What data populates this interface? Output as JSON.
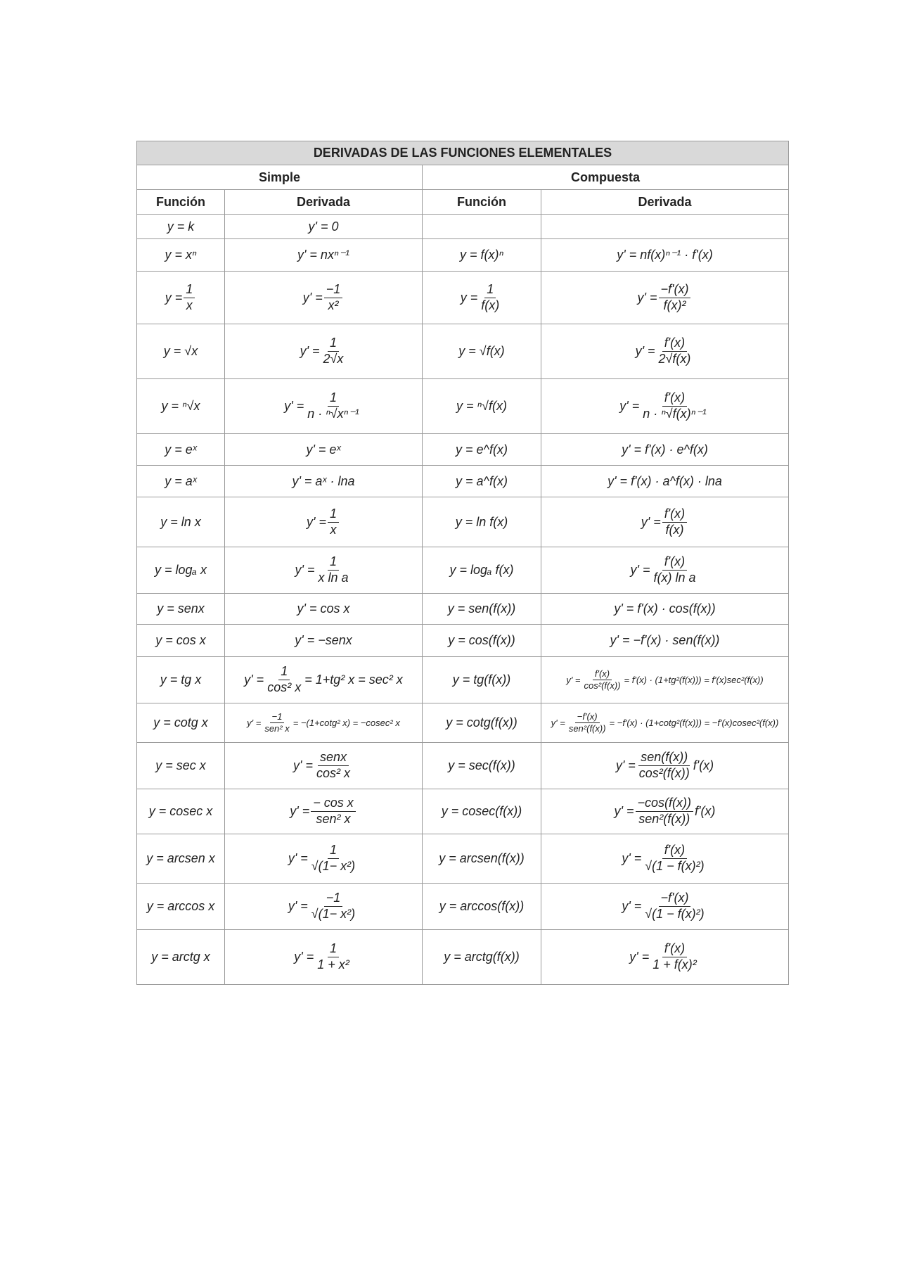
{
  "title": "DERIVADAS DE LAS FUNCIONES ELEMENTALES",
  "groups": {
    "simple": "Simple",
    "compuesta": "Compuesta"
  },
  "columns": {
    "funcion": "Función",
    "derivada": "Derivada"
  },
  "rows": [
    {
      "sf": {
        "pre": "y = k"
      },
      "sd": {
        "pre": "y' = 0"
      },
      "cf": {
        "pre": ""
      },
      "cd": {
        "pre": ""
      }
    },
    {
      "sf": {
        "pre": "y = xⁿ"
      },
      "sd": {
        "pre": "y' = nxⁿ⁻¹"
      },
      "cf": {
        "pre": "y = f(x)ⁿ"
      },
      "cd": {
        "pre": "y' = nf(x)ⁿ⁻¹ · f'(x)"
      }
    },
    {
      "sf": {
        "pre": "y =",
        "num": "1",
        "den": "x"
      },
      "sd": {
        "pre": "y' =",
        "num": "−1",
        "den": "x²"
      },
      "cf": {
        "pre": "y =",
        "num": "1",
        "den": "f(x)"
      },
      "cd": {
        "pre": "y' =",
        "num": "−f'(x)",
        "den": "f(x)²"
      }
    },
    {
      "sf": {
        "pre": "y = √x"
      },
      "sd": {
        "pre": "y' =",
        "num": "1",
        "den": "2√x"
      },
      "cf": {
        "pre": "y = √f(x)"
      },
      "cd": {
        "pre": "y' =",
        "num": "f'(x)",
        "den": "2√f(x)"
      }
    },
    {
      "sf": {
        "pre": "y = ⁿ√x"
      },
      "sd": {
        "pre": "y' =",
        "num": "1",
        "den": "n · ⁿ√xⁿ⁻¹"
      },
      "cf": {
        "pre": "y = ⁿ√f(x)"
      },
      "cd": {
        "pre": "y' =",
        "num": "f'(x)",
        "den": "n · ⁿ√f(x)ⁿ⁻¹"
      }
    },
    {
      "sf": {
        "pre": "y = eˣ"
      },
      "sd": {
        "pre": "y' = eˣ"
      },
      "cf": {
        "pre": "y = e^f(x)"
      },
      "cd": {
        "pre": "y' = f'(x) · e^f(x)"
      }
    },
    {
      "sf": {
        "pre": "y = aˣ"
      },
      "sd": {
        "pre": "y' = aˣ · lna"
      },
      "cf": {
        "pre": "y = a^f(x)"
      },
      "cd": {
        "pre": "y' = f'(x) · a^f(x) · lna"
      }
    },
    {
      "sf": {
        "pre": "y = ln x"
      },
      "sd": {
        "pre": "y' =",
        "num": "1",
        "den": "x"
      },
      "cf": {
        "pre": "y = ln f(x)"
      },
      "cd": {
        "pre": "y' =",
        "num": "f'(x)",
        "den": "f(x)"
      }
    },
    {
      "sf": {
        "pre": "y = logₐ x"
      },
      "sd": {
        "pre": "y' =",
        "num": "1",
        "den": "x ln a"
      },
      "cf": {
        "pre": "y = logₐ f(x)"
      },
      "cd": {
        "pre": "y' =",
        "num": "f'(x)",
        "den": "f(x) ln a"
      }
    },
    {
      "sf": {
        "pre": "y = senx"
      },
      "sd": {
        "pre": "y' = cos x"
      },
      "cf": {
        "pre": "y = sen(f(x))"
      },
      "cd": {
        "pre": "y' = f'(x) · cos(f(x))"
      }
    },
    {
      "sf": {
        "pre": "y = cos x"
      },
      "sd": {
        "pre": "y' = −senx"
      },
      "cf": {
        "pre": "y = cos(f(x))"
      },
      "cd": {
        "pre": "y' = −f'(x) · sen(f(x))"
      }
    },
    {
      "sf": {
        "pre": "y = tg x"
      },
      "sd": {
        "pre": "y' =",
        "num": "1",
        "den": "cos² x",
        "post": "= 1+tg² x = sec² x"
      },
      "cf": {
        "pre": "y = tg(f(x))"
      },
      "cd": {
        "pre": "y' =",
        "num": "f'(x)",
        "den": "cos²(f(x))",
        "post": "= f'(x) · (1+tg²(f(x))) = f'(x)sec²(f(x))",
        "small": true
      }
    },
    {
      "sf": {
        "pre": "y = cotg x"
      },
      "sd": {
        "pre": "y' =",
        "num": "−1",
        "den": "sen² x",
        "post": "= −(1+cotg² x) = −cosec² x",
        "small": true
      },
      "cf": {
        "pre": "y = cotg(f(x))"
      },
      "cd": {
        "pre": "y' =",
        "num": "−f'(x)",
        "den": "sen²(f(x))",
        "post": "= −f'(x) · (1+cotg²(f(x))) = −f'(x)cosec²(f(x))",
        "small": true
      }
    },
    {
      "sf": {
        "pre": "y = sec x"
      },
      "sd": {
        "pre": "y' =",
        "num": "senx",
        "den": "cos² x"
      },
      "cf": {
        "pre": "y = sec(f(x))"
      },
      "cd": {
        "pre": "y' =",
        "num": "sen(f(x))",
        "den": "cos²(f(x))",
        "post": "f'(x)"
      }
    },
    {
      "sf": {
        "pre": "y = cosec x"
      },
      "sd": {
        "pre": "y' =",
        "num": "− cos x",
        "den": "sen² x"
      },
      "cf": {
        "pre": "y = cosec(f(x))"
      },
      "cd": {
        "pre": "y' =",
        "num": "−cos(f(x))",
        "den": "sen²(f(x))",
        "post": "f'(x)"
      }
    },
    {
      "sf": {
        "pre": "y = arcsen x"
      },
      "sd": {
        "pre": "y' =",
        "num": "1",
        "den": "√(1− x²)"
      },
      "cf": {
        "pre": "y = arcsen(f(x))"
      },
      "cd": {
        "pre": "y' =",
        "num": "f'(x)",
        "den": "√(1 − f(x)²)"
      }
    },
    {
      "sf": {
        "pre": "y = arccos x"
      },
      "sd": {
        "pre": "y' =",
        "num": "−1",
        "den": "√(1− x²)"
      },
      "cf": {
        "pre": "y = arccos(f(x))"
      },
      "cd": {
        "pre": "y' =",
        "num": "−f'(x)",
        "den": "√(1 − f(x)²)"
      }
    },
    {
      "sf": {
        "pre": "y = arctg x"
      },
      "sd": {
        "pre": "y' =",
        "num": "1",
        "den": "1 + x²"
      },
      "cf": {
        "pre": "y = arctg(f(x))"
      },
      "cd": {
        "pre": "y' =",
        "num": "f'(x)",
        "den": "1 + f(x)²"
      }
    }
  ]
}
